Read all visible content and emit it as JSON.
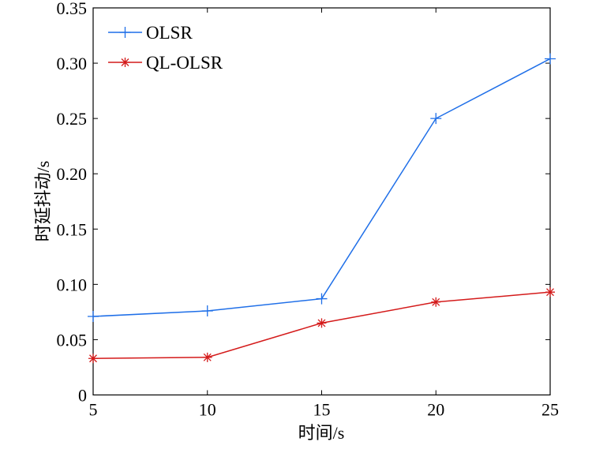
{
  "chart_data": {
    "type": "line",
    "title": "",
    "xlabel": "时间/s",
    "ylabel": "时延抖动/s",
    "x": [
      5,
      10,
      15,
      20,
      25
    ],
    "xlim": [
      5,
      25
    ],
    "ylim": [
      0,
      0.35
    ],
    "xticks": [
      "5",
      "10",
      "15",
      "20",
      "25"
    ],
    "yticks": [
      "0",
      "0.05",
      "0.10",
      "0.15",
      "0.20",
      "0.25",
      "0.30",
      "0.35"
    ],
    "grid": false,
    "legend_position": "top-left",
    "series": [
      {
        "name": "OLSR",
        "values": [
          0.071,
          0.076,
          0.087,
          0.25,
          0.304
        ],
        "color": "#1f6fe8",
        "marker": "plus"
      },
      {
        "name": "QL-OLSR",
        "values": [
          0.033,
          0.034,
          0.065,
          0.084,
          0.093
        ],
        "color": "#d41a1a",
        "marker": "asterisk"
      }
    ]
  }
}
